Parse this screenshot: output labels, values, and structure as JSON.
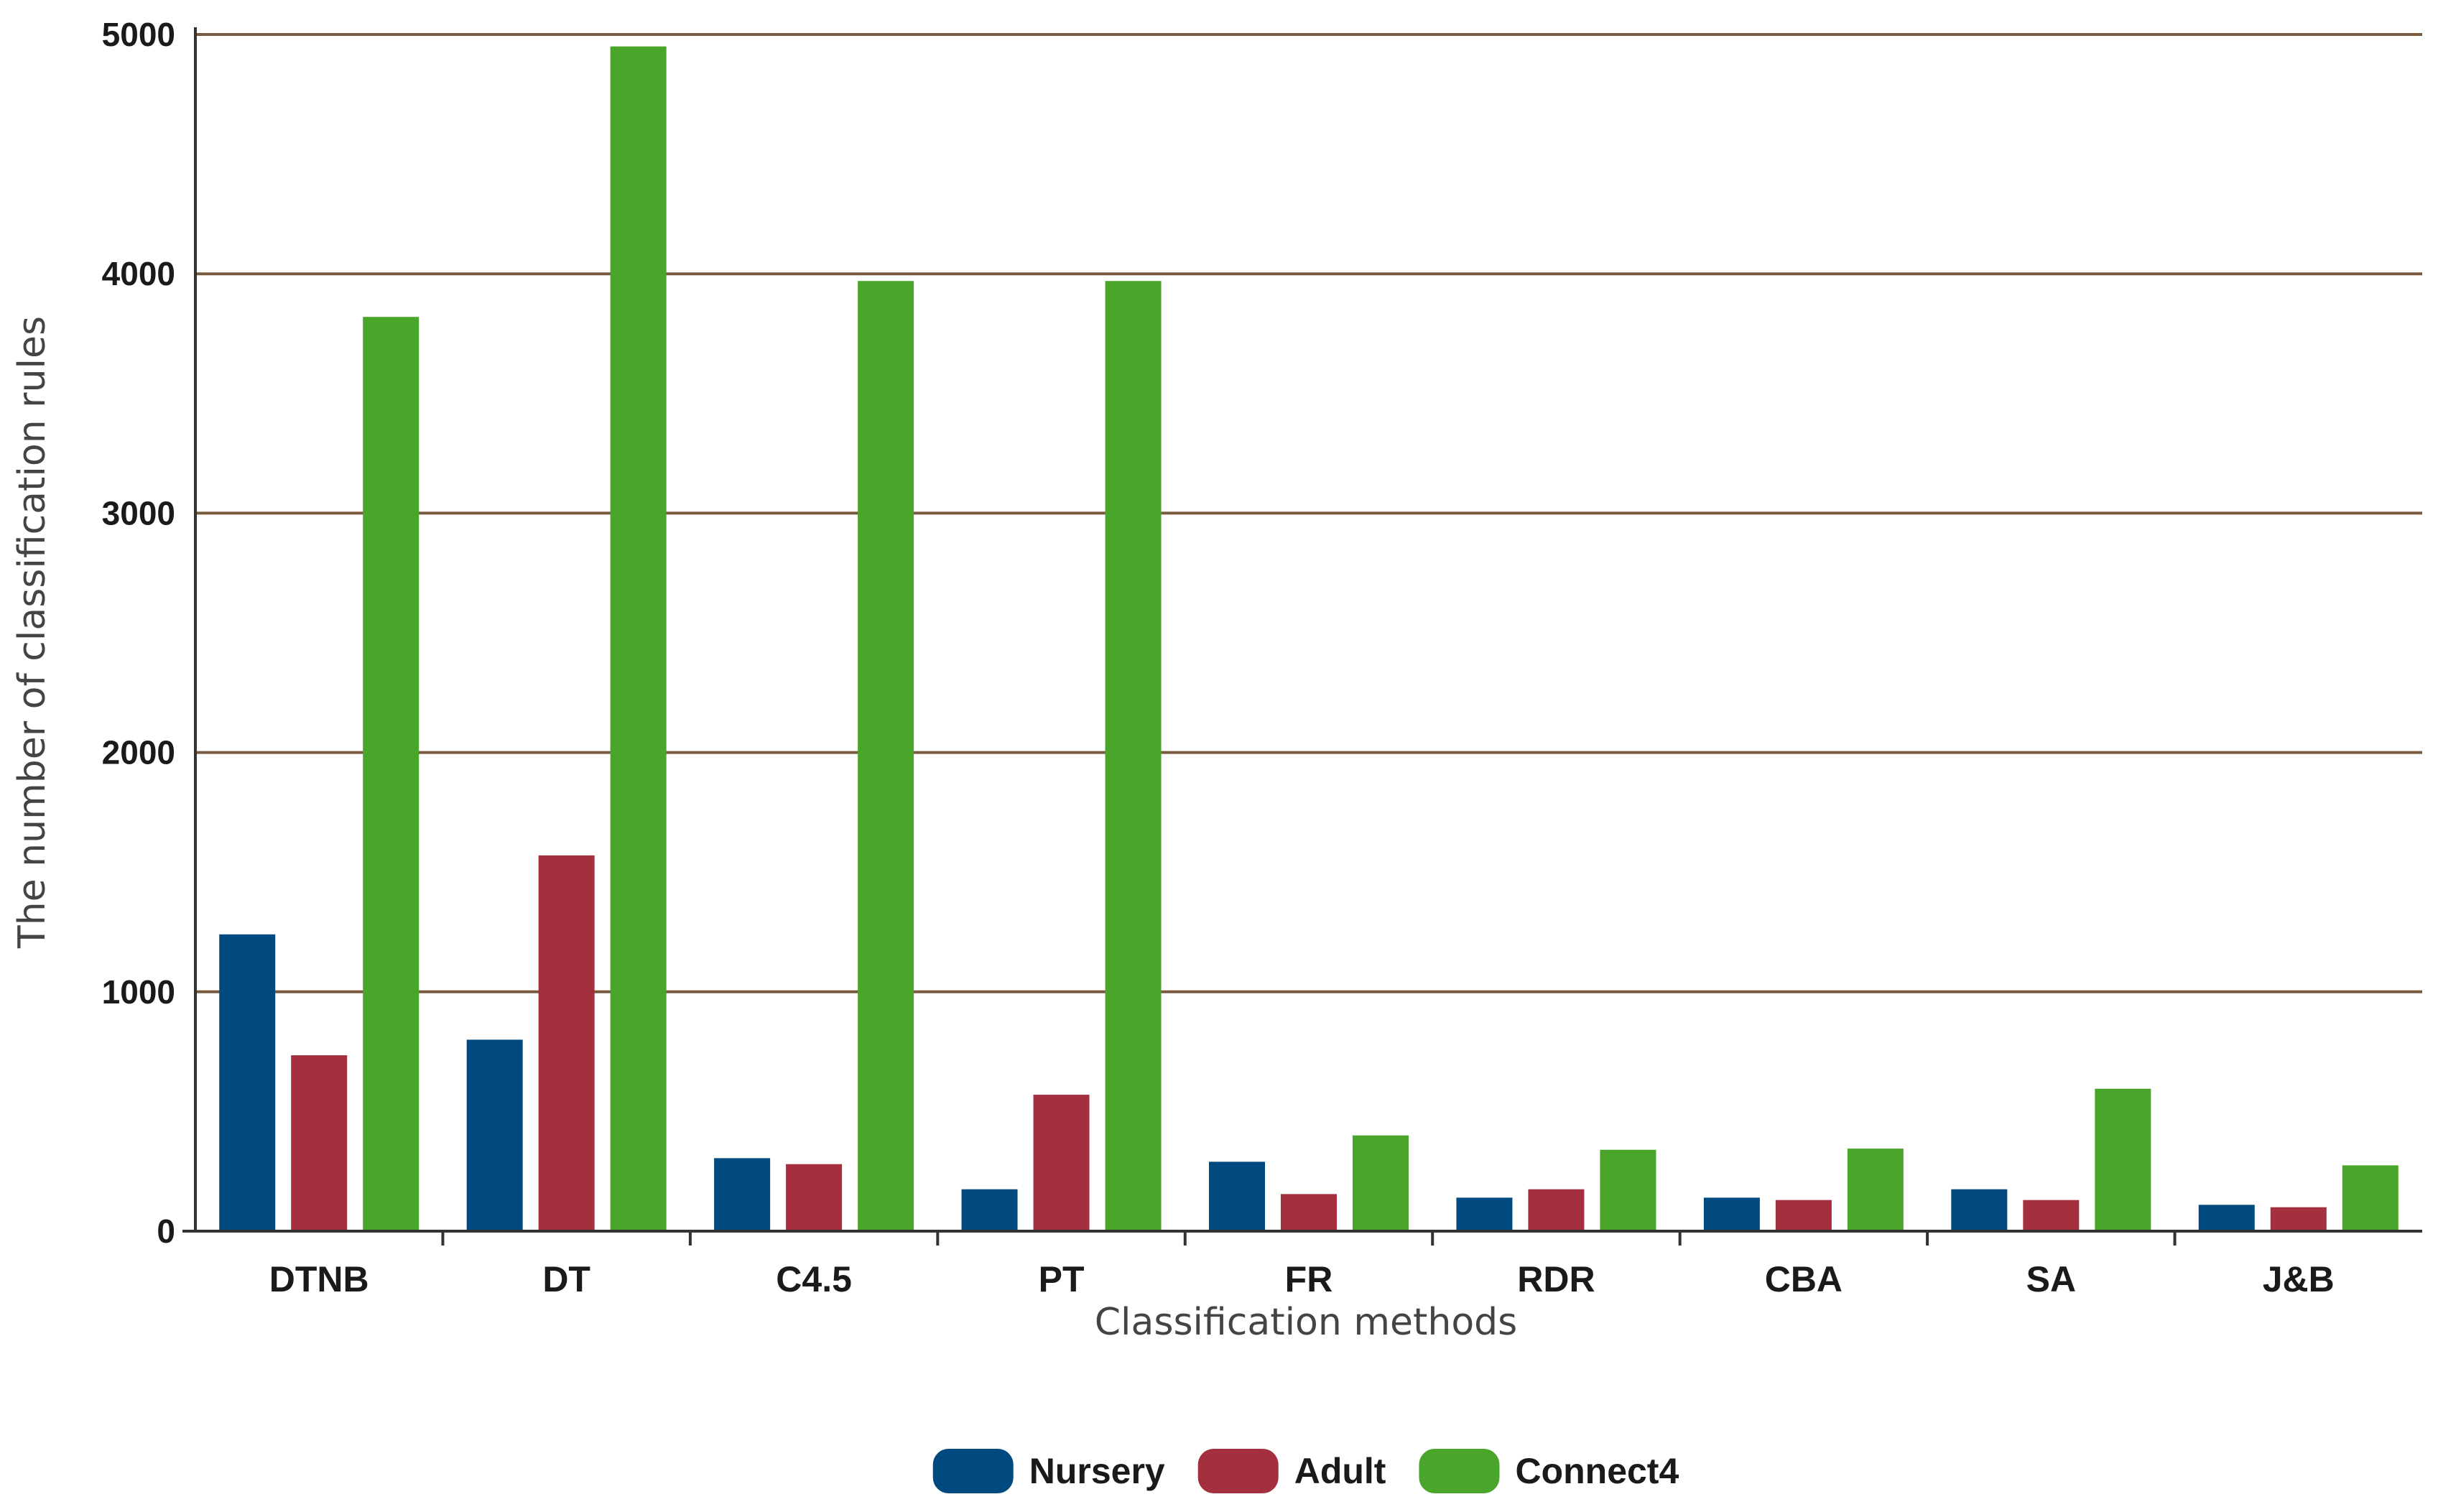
{
  "chart_data": {
    "type": "bar",
    "categories": [
      "DTNB",
      "DT",
      "C4.5",
      "PT",
      "FR",
      "RDR",
      "CBA",
      "SA",
      "J&B"
    ],
    "series": [
      {
        "name": "Nursery",
        "color": "#004a7f",
        "values": [
          1240,
          800,
          305,
          175,
          290,
          140,
          140,
          175,
          110
        ]
      },
      {
        "name": "Adult",
        "color": "#a32f3f",
        "values": [
          735,
          1570,
          280,
          570,
          155,
          175,
          130,
          130,
          100
        ]
      },
      {
        "name": "Connect4",
        "color": "#4aa62a",
        "values": [
          3820,
          4950,
          3970,
          3970,
          400,
          340,
          345,
          595,
          275
        ]
      }
    ],
    "xlabel": "Classification methods",
    "ylabel": "The number of classification rules",
    "ylim": [
      0,
      5000
    ],
    "yticks": [
      0,
      1000,
      2000,
      3000,
      4000,
      5000
    ],
    "ytick_labels": [
      "0",
      "1000",
      "2000",
      "3000",
      "4000",
      "5000"
    ],
    "grid": true,
    "legend_position": "bottom-center",
    "gridline_color": "#7a5a3f"
  }
}
